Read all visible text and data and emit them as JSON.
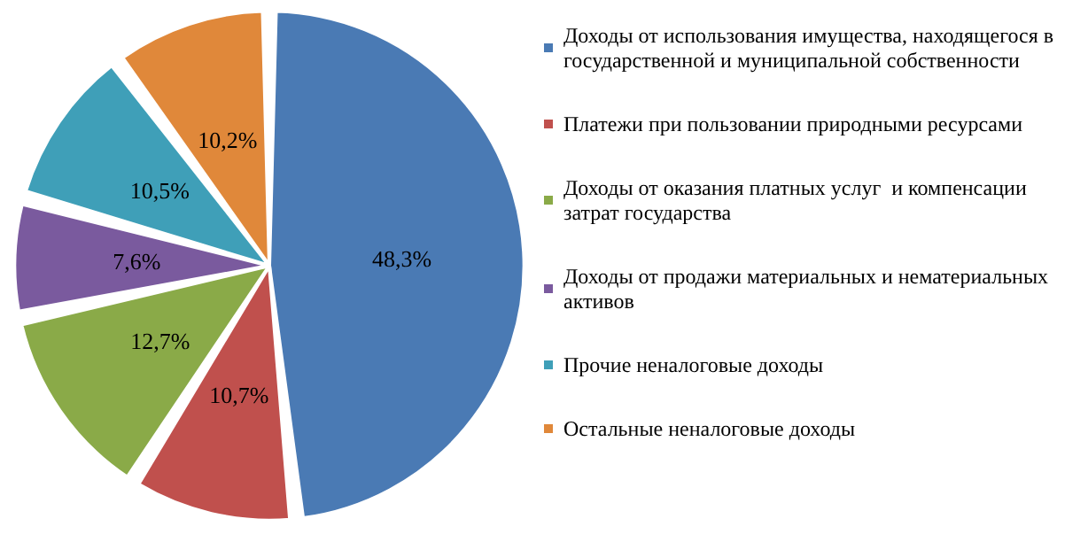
{
  "chart_data": {
    "type": "pie",
    "categories": [
      "Доходы от использования имущества, находящегося в государственной и муниципальной собственности",
      "Платежи при пользовании природными ресурсами",
      "Доходы от оказания платных услуг  и компенсации затрат государства",
      "Доходы от продажи материальных и нематериальных  активов",
      "Прочие неналоговые доходы",
      "Остальные неналоговые доходы"
    ],
    "values": [
      48.3,
      10.7,
      12.7,
      7.6,
      10.5,
      10.2
    ],
    "value_labels": [
      "48,3%",
      "10,7%",
      "12,7%",
      "7,6%",
      "10,5%",
      "10,2%"
    ],
    "colors": [
      "#4a7ab4",
      "#c0504d",
      "#8aaa48",
      "#7a5a9e",
      "#3f9fb8",
      "#e0883a"
    ],
    "legend": "right"
  }
}
